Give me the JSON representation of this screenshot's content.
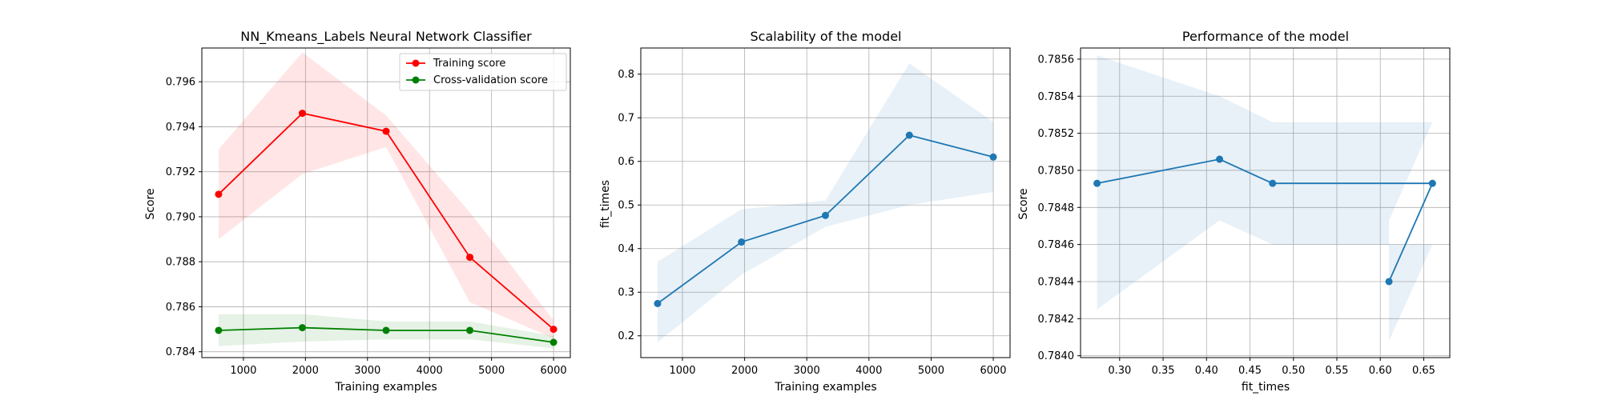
{
  "chart_data": [
    {
      "type": "line",
      "title": "NN_Kmeans_Labels Neural Network Classifier",
      "xlabel": "Training examples",
      "ylabel": "Score",
      "xlim": [
        330,
        6270
      ],
      "ylim": [
        0.78374,
        0.7975
      ],
      "xticks": [
        1000,
        2000,
        3000,
        4000,
        5000,
        6000
      ],
      "yticks": [
        0.784,
        0.786,
        0.788,
        0.79,
        0.792,
        0.794,
        0.796
      ],
      "ytick_decimals": 3,
      "grid": true,
      "legend": {
        "position": "top-right",
        "entries": [
          "Training score",
          "Cross-validation score"
        ]
      },
      "series": [
        {
          "name": "Training score",
          "color": "#ff0000",
          "band_color": "#ff0000",
          "x": [
            600,
            1950,
            3300,
            4650,
            6000
          ],
          "y": [
            0.791,
            0.7946,
            0.7938,
            0.7882,
            0.785
          ],
          "lower": [
            0.789,
            0.7919,
            0.7931,
            0.7862,
            0.7846
          ],
          "upper": [
            0.793,
            0.7973,
            0.7945,
            0.7902,
            0.7854
          ]
        },
        {
          "name": "Cross-validation score",
          "color": "#008000",
          "band_color": "#008000",
          "x": [
            600,
            1950,
            3300,
            4650,
            6000
          ],
          "y": [
            0.78495,
            0.78507,
            0.78495,
            0.78495,
            0.78442
          ],
          "lower": [
            0.78425,
            0.78445,
            0.78455,
            0.78455,
            0.78415
          ],
          "upper": [
            0.78567,
            0.78567,
            0.78535,
            0.78535,
            0.7847
          ]
        }
      ]
    },
    {
      "type": "line",
      "title": "Scalability of the model",
      "xlabel": "Training examples",
      "ylabel": "fit_times",
      "xlim": [
        330,
        6270
      ],
      "ylim": [
        0.15,
        0.86
      ],
      "xticks": [
        1000,
        2000,
        3000,
        4000,
        5000,
        6000
      ],
      "yticks": [
        0.2,
        0.3,
        0.4,
        0.5,
        0.6,
        0.7,
        0.8
      ],
      "ytick_decimals": 1,
      "grid": true,
      "series": [
        {
          "color": "#1f77b4",
          "band_color": "#1f77b4",
          "x": [
            600,
            1950,
            3300,
            4650,
            6000
          ],
          "y": [
            0.274,
            0.415,
            0.476,
            0.66,
            0.61
          ],
          "lower": [
            0.185,
            0.34,
            0.45,
            0.5,
            0.53
          ],
          "upper": [
            0.37,
            0.49,
            0.51,
            0.825,
            0.69
          ]
        }
      ]
    },
    {
      "type": "line",
      "title": "Performance of the model",
      "xlabel": "fit_times",
      "ylabel": "Score",
      "xlim": [
        0.255,
        0.68
      ],
      "ylim": [
        0.78399,
        0.78566
      ],
      "xticks": [
        0.3,
        0.35,
        0.4,
        0.45,
        0.5,
        0.55,
        0.6,
        0.65
      ],
      "xtick_decimals": 2,
      "yticks": [
        0.784,
        0.7842,
        0.7844,
        0.7846,
        0.7848,
        0.785,
        0.7852,
        0.7854,
        0.7856
      ],
      "ytick_decimals": 4,
      "grid": true,
      "series": [
        {
          "color": "#1f77b4",
          "band_color": "#1f77b4",
          "x": [
            0.274,
            0.415,
            0.476,
            0.66,
            0.61
          ],
          "y": [
            0.78493,
            0.78506,
            0.78493,
            0.78493,
            0.7844
          ],
          "lower": [
            0.78425,
            0.78473,
            0.7846,
            0.7846,
            0.78408
          ],
          "upper": [
            0.78562,
            0.7854,
            0.78526,
            0.78526,
            0.78473
          ]
        }
      ]
    }
  ]
}
